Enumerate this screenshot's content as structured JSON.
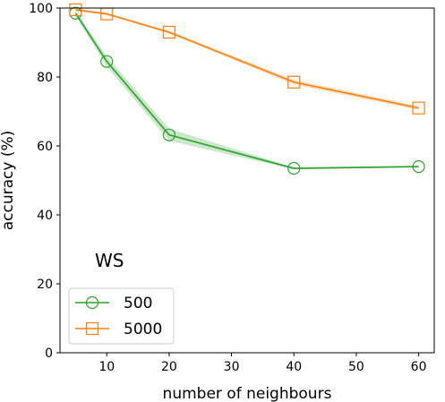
{
  "chart_data": {
    "type": "line",
    "xlabel": "number of neighbours",
    "ylabel": "accuracy (%)",
    "xlim": [
      2.5,
      62.5
    ],
    "ylim": [
      0,
      100
    ],
    "xticks": [
      10,
      20,
      30,
      40,
      50,
      60
    ],
    "yticks": [
      0,
      20,
      40,
      60,
      80,
      100
    ],
    "grid": false,
    "legend_position": "lower-left",
    "annotation": "WS",
    "series": [
      {
        "name": "500",
        "color": "#2ca02c",
        "marker": "circle",
        "x": [
          5,
          10,
          20,
          40,
          60
        ],
        "y": [
          98.5,
          84.5,
          63.2,
          53.5,
          54.0
        ],
        "band_lower": [
          97.8,
          83.0,
          61.5,
          53.2,
          53.8
        ],
        "band_upper": [
          99.2,
          86.0,
          65.0,
          53.8,
          54.2
        ]
      },
      {
        "name": "5000",
        "color": "#ff7f0e",
        "marker": "square",
        "x": [
          5,
          10,
          20,
          40,
          60
        ],
        "y": [
          99.5,
          98.3,
          93.0,
          78.5,
          71.0
        ],
        "band_lower": [
          99.2,
          98.0,
          92.6,
          77.8,
          70.4
        ],
        "band_upper": [
          99.8,
          98.6,
          93.4,
          79.2,
          71.6
        ]
      }
    ]
  }
}
